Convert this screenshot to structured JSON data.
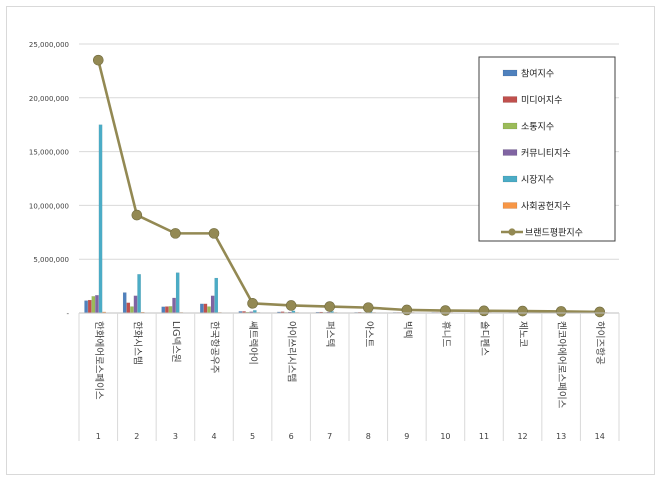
{
  "chart_data": {
    "type": "bar",
    "title": "",
    "xlabel": "",
    "ylabel": "",
    "ylim": [
      0,
      25000000
    ],
    "yticks": [
      "-",
      "5,000,000",
      "10,000,000",
      "15,000,000",
      "20,000,000",
      "25,000,000"
    ],
    "grid": true,
    "legend_position": "top-right",
    "categories": [
      "1",
      "2",
      "3",
      "4",
      "5",
      "6",
      "7",
      "8",
      "9",
      "10",
      "11",
      "12",
      "13",
      "14"
    ],
    "category_names": [
      "한화에어로스페이스",
      "한화시스템",
      "LIG넥스원",
      "한국항공우주",
      "쎄트렉아이",
      "아이쓰리시스템",
      "퍼스텍",
      "아스트",
      "빅텍",
      "휴니드",
      "솔디펜스",
      "제노코",
      "켄코아에어로스페이스",
      "하이즈항공"
    ],
    "series": [
      {
        "name": "참여지수",
        "kind": "bar",
        "color": "#4f81bd",
        "values": [
          1150000,
          1900000,
          580000,
          850000,
          150000,
          100000,
          80000,
          60000,
          40000,
          30000,
          25000,
          20000,
          15000,
          10000
        ]
      },
      {
        "name": "미디어지수",
        "kind": "bar",
        "color": "#c0504d",
        "values": [
          1200000,
          950000,
          600000,
          850000,
          150000,
          120000,
          90000,
          70000,
          50000,
          40000,
          30000,
          25000,
          20000,
          15000
        ]
      },
      {
        "name": "소통지수",
        "kind": "bar",
        "color": "#9bbb59",
        "values": [
          1550000,
          600000,
          620000,
          600000,
          80000,
          60000,
          50000,
          40000,
          30000,
          25000,
          20000,
          15000,
          10000,
          8000
        ]
      },
      {
        "name": "커뮤니티지수",
        "kind": "bar",
        "color": "#8064a2",
        "values": [
          1650000,
          1600000,
          1400000,
          1600000,
          120000,
          90000,
          80000,
          60000,
          40000,
          30000,
          25000,
          20000,
          15000,
          10000
        ]
      },
      {
        "name": "시장지수",
        "kind": "bar",
        "color": "#4bacc6",
        "values": [
          17500000,
          3600000,
          3750000,
          3250000,
          250000,
          200000,
          150000,
          120000,
          80000,
          60000,
          50000,
          40000,
          30000,
          20000
        ]
      },
      {
        "name": "사회공헌지수",
        "kind": "bar",
        "color": "#f79646",
        "values": [
          100000,
          80000,
          60000,
          60000,
          20000,
          15000,
          10000,
          8000,
          6000,
          5000,
          4000,
          3000,
          2000,
          1000
        ]
      },
      {
        "name": "브랜드평판지수",
        "kind": "line",
        "color": "#938953",
        "values": [
          23500000,
          9100000,
          7400000,
          7400000,
          900000,
          700000,
          600000,
          500000,
          280000,
          230000,
          200000,
          180000,
          150000,
          100000
        ]
      }
    ]
  }
}
